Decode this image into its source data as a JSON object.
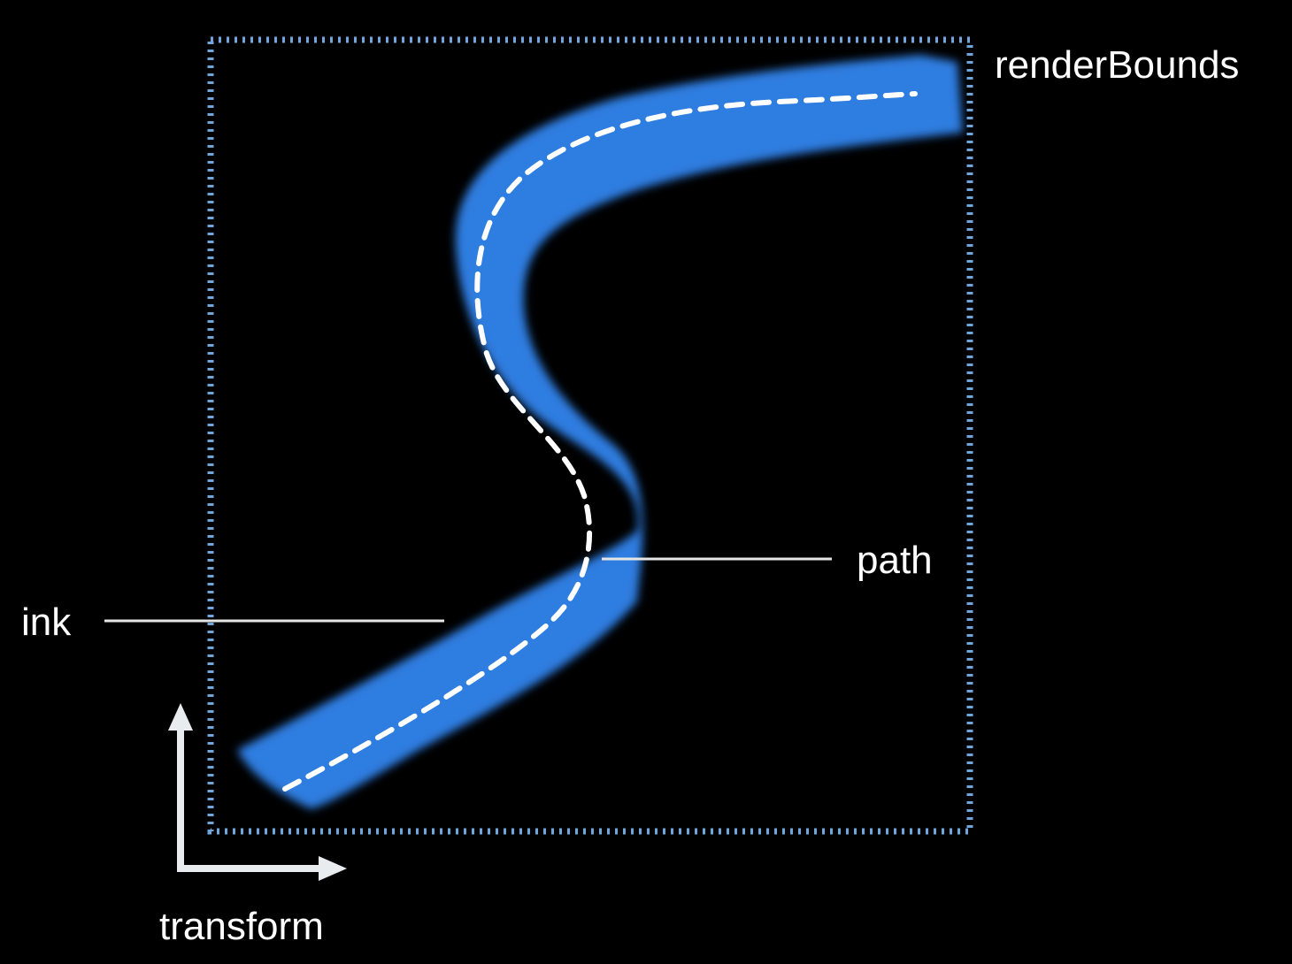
{
  "labels": {
    "render_bounds": "renderBounds",
    "path": "path",
    "ink": "ink",
    "transform": "transform"
  },
  "colors": {
    "background": "#000000",
    "ink_stroke": "#2f7de0",
    "bounds_border": "#6fa7dc",
    "path_line": "#ffffff",
    "leader_line": "#e6e6e6",
    "axis_arrow": "#e8ecef"
  },
  "shapes": {
    "render_bounds_box": "dotted rectangle",
    "ink": "blurred blue brush stroke, S-shaped",
    "path": "dashed white center line",
    "transform": "x/y axis arrows"
  }
}
